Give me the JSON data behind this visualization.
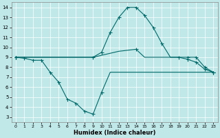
{
  "xlabel": "Humidex (Indice chaleur)",
  "bg_color": "#c0e8e8",
  "line_color": "#006868",
  "xlim": [
    -0.5,
    23.5
  ],
  "ylim": [
    2.5,
    14.5
  ],
  "xticks": [
    0,
    1,
    2,
    3,
    4,
    5,
    6,
    7,
    8,
    9,
    10,
    11,
    12,
    13,
    14,
    15,
    16,
    17,
    18,
    19,
    20,
    21,
    22,
    23
  ],
  "yticks": [
    3,
    4,
    5,
    6,
    7,
    8,
    9,
    10,
    11,
    12,
    13,
    14
  ],
  "line1_x": [
    0,
    1,
    2,
    3,
    4,
    5,
    6,
    7,
    8,
    9,
    10,
    11,
    12,
    13,
    14,
    15,
    16,
    17,
    18,
    19,
    20,
    21,
    22,
    23
  ],
  "line1_y": [
    9.0,
    8.9,
    8.7,
    8.7,
    7.5,
    6.5,
    4.8,
    4.4,
    3.6,
    3.3,
    5.5,
    7.5,
    7.5,
    7.5,
    7.5,
    7.5,
    7.5,
    7.5,
    7.5,
    7.5,
    7.5,
    7.5,
    7.5,
    7.5
  ],
  "line1_mx": [
    0,
    1,
    2,
    3,
    4,
    5,
    6,
    7,
    8,
    9,
    10,
    23
  ],
  "line1_my": [
    9.0,
    8.9,
    8.7,
    8.7,
    7.5,
    6.5,
    4.8,
    4.4,
    3.6,
    3.3,
    5.5,
    7.5
  ],
  "line2_x": [
    0,
    1,
    2,
    3,
    4,
    5,
    6,
    7,
    8,
    9,
    10,
    11,
    12,
    13,
    14,
    15,
    16,
    17,
    18,
    19,
    20,
    21,
    22,
    23
  ],
  "line2_y": [
    9.0,
    9.0,
    9.0,
    9.0,
    9.0,
    9.0,
    9.0,
    9.0,
    9.0,
    9.0,
    9.2,
    9.4,
    9.6,
    9.7,
    9.8,
    9.0,
    9.0,
    9.0,
    9.0,
    9.0,
    9.0,
    9.0,
    8.0,
    7.5
  ],
  "line2_mx": [
    0,
    9,
    14,
    20,
    21,
    22,
    23
  ],
  "line2_my": [
    9.0,
    9.0,
    9.8,
    9.0,
    9.0,
    8.0,
    7.5
  ],
  "line3_x": [
    0,
    1,
    2,
    3,
    4,
    5,
    6,
    7,
    8,
    9,
    10,
    11,
    12,
    13,
    14,
    15,
    16,
    17,
    18,
    19,
    20,
    21,
    22,
    23
  ],
  "line3_y": [
    9.0,
    9.0,
    9.0,
    9.0,
    9.0,
    9.0,
    9.0,
    9.0,
    9.0,
    9.0,
    9.5,
    11.5,
    13.0,
    14.0,
    14.0,
    13.2,
    12.0,
    10.4,
    9.0,
    9.0,
    8.8,
    8.5,
    7.8,
    7.5
  ],
  "line3_mx": [
    0,
    10,
    11,
    12,
    13,
    14,
    15,
    16,
    17,
    19,
    20,
    21,
    22,
    23
  ],
  "line3_my": [
    9.0,
    9.5,
    11.5,
    13.0,
    14.0,
    14.0,
    13.2,
    12.0,
    10.4,
    9.0,
    8.8,
    8.5,
    7.8,
    7.5
  ]
}
